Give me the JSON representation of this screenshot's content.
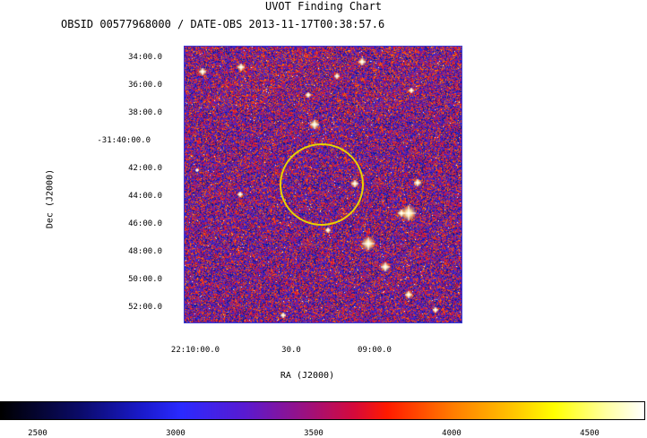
{
  "header": {
    "title": "UVOT Finding Chart",
    "subtitle": "OBSID 00577968000 / DATE-OBS 2013-11-17T00:38:57.6"
  },
  "axes": {
    "ylabel": "Dec (J2000)",
    "xlabel": "RA (J2000)",
    "dec_ticks": [
      "34:00.0",
      "36:00.0",
      "38:00.0",
      "-31:40:00.0",
      "42:00.0",
      "44:00.0",
      "46:00.0",
      "48:00.0",
      "50:00.0",
      "52:00.0"
    ],
    "ra_ticks": [
      "22:10:00.0",
      "30.0",
      "09:00.0"
    ]
  },
  "colorbar": {
    "ticks": [
      "2500",
      "3000",
      "3500",
      "4000",
      "4500"
    ]
  },
  "colors": {
    "circle": "#e8d200",
    "frame": "#3b3bd6"
  }
}
